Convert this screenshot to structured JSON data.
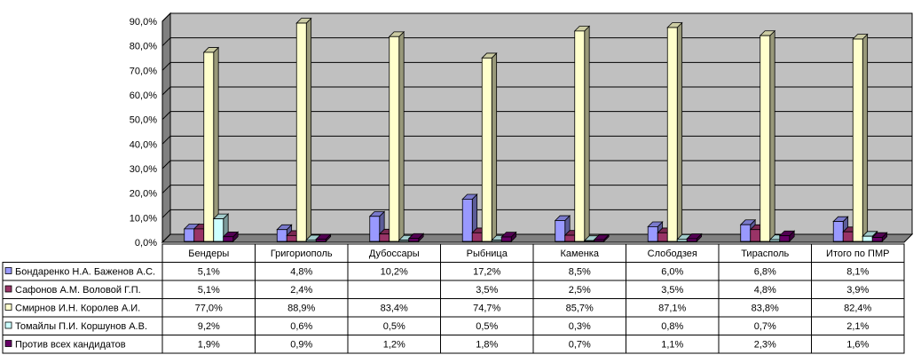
{
  "chart_data": {
    "type": "bar",
    "categories": [
      "Бендеры",
      "Григориополь",
      "Дубоссары",
      "Рыбница",
      "Каменка",
      "Слободзея",
      "Тирасполь",
      "Итого по ПМР"
    ],
    "ylim": [
      0,
      90
    ],
    "yticks": [
      0,
      10,
      20,
      30,
      40,
      50,
      60,
      70,
      80,
      90
    ],
    "ytick_labels": [
      "0,0%",
      "10,0%",
      "20,0%",
      "30,0%",
      "40,0%",
      "50,0%",
      "60,0%",
      "70,0%",
      "80,0%",
      "90,0%"
    ],
    "grid": true,
    "legend_placement": "table-left",
    "series": [
      {
        "name": "Бондаренко Н.А. Баженов А.С.",
        "color": "#9999ff",
        "values": [
          5.1,
          4.8,
          10.2,
          17.2,
          8.5,
          6.0,
          6.8,
          8.1
        ],
        "labels": [
          "5,1%",
          "4,8%",
          "10,2%",
          "17,2%",
          "8,5%",
          "6,0%",
          "6,8%",
          "8,1%"
        ]
      },
      {
        "name": "Сафонов А.М. Воловой Г.П.",
        "color": "#993366",
        "values": [
          5.1,
          2.4,
          3.0,
          3.5,
          2.5,
          3.5,
          4.8,
          3.9
        ],
        "labels": [
          "5,1%",
          "2,4%",
          "",
          "3,5%",
          "2,5%",
          "3,5%",
          "4,8%",
          "3,9%"
        ]
      },
      {
        "name": "Смирнов И.Н. Королев А.И.",
        "color": "#ffffcc",
        "values": [
          77.0,
          88.9,
          83.4,
          74.7,
          85.7,
          87.1,
          83.8,
          82.4
        ],
        "labels": [
          "77,0%",
          "88,9%",
          "83,4%",
          "74,7%",
          "85,7%",
          "87,1%",
          "83,8%",
          "82,4%"
        ]
      },
      {
        "name": "Томайлы П.И. Коршунов А.В.",
        "color": "#ccffff",
        "values": [
          9.2,
          0.6,
          0.5,
          0.5,
          0.3,
          0.8,
          0.7,
          2.1
        ],
        "labels": [
          "9,2%",
          "0,6%",
          "0,5%",
          "0,5%",
          "0,3%",
          "0,8%",
          "0,7%",
          "2,1%"
        ]
      },
      {
        "name": "Против всех кандидатов",
        "color": "#660066",
        "values": [
          1.9,
          0.9,
          1.2,
          1.8,
          0.7,
          1.1,
          2.3,
          1.6
        ],
        "labels": [
          "1,9%",
          "0,9%",
          "1,2%",
          "1,8%",
          "0,7%",
          "1,1%",
          "2,3%",
          "1,6%"
        ]
      }
    ]
  },
  "colors": {
    "wall": "#c0c0c0",
    "floor": "#808080",
    "gridline": "#000000"
  }
}
